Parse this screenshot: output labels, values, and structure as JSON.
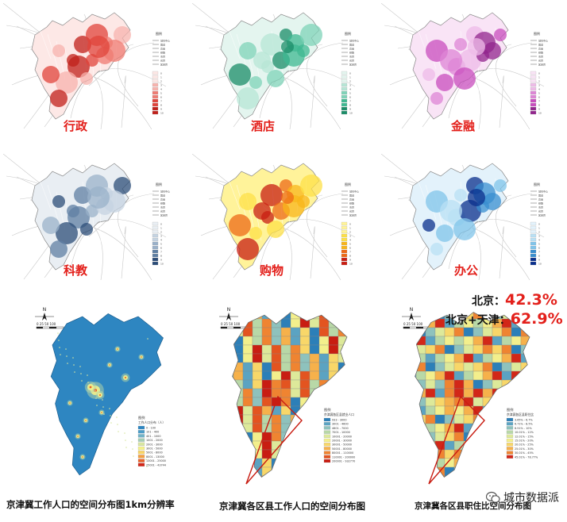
{
  "top_labels": [
    "行政",
    "酒店",
    "金融",
    "科教",
    "购物",
    "办公"
  ],
  "top_legend_title": "图例",
  "top_legend_items": [
    "城市中心",
    "国道",
    "高速",
    "铁路",
    "市界",
    "省界",
    "区县界"
  ],
  "top_legend_values": [
    "0",
    "1",
    "2",
    "3",
    "4",
    "5",
    "6",
    "7",
    "8",
    "9",
    "10"
  ],
  "palettes": {
    "red": [
      "#fde8e6",
      "#f7b3ad",
      "#ef7b72",
      "#e0443b",
      "#c0201a"
    ],
    "green": [
      "#e4f5ef",
      "#b7e6d6",
      "#7fd3b8",
      "#3fb892",
      "#1b8c68"
    ],
    "magenta": [
      "#f9e4f6",
      "#eebbe8",
      "#de85d6",
      "#c84dbe",
      "#92258d"
    ],
    "slate": [
      "#e9eef3",
      "#c5d3e1",
      "#9ab1c9",
      "#5f7fa3",
      "#2c4d78"
    ],
    "yellow_red": [
      "#fff39a",
      "#fde047",
      "#f8b51b",
      "#ee6a16",
      "#c81d12"
    ],
    "blue": [
      "#e3f2fb",
      "#b9e0f4",
      "#80c4ea",
      "#3a8fd0",
      "#0a2f8c"
    ]
  },
  "bottom": {
    "scale_text": "0   25  50    100",
    "scale_unit": "千米",
    "north": "N",
    "map1": {
      "title": "京津冀工作人口的空间分布图1km分辨率",
      "legend_title": "图例",
      "legend_subtitle": "工作人口分布（人）",
      "legend_items": [
        "0 - 100",
        "101 - 400",
        "401 - 1000",
        "1001 - 2000",
        "2001 - 3000",
        "3001 - 5000",
        "5001 - 8000",
        "8001 - 13000",
        "13001 - 25000",
        "25001 - 43744"
      ],
      "legend_colors": [
        "#2e86c1",
        "#4a9cc8",
        "#71b3c8",
        "#a3cdb5",
        "#d8e6a0",
        "#f4f18a",
        "#f9d466",
        "#f4a041",
        "#e9622a",
        "#d22718"
      ]
    },
    "map2": {
      "title": "京津冀各区县工作人口的空间分布图",
      "legend_title": "图例",
      "legend_subtitle": "京津冀各区县就业人口",
      "legend_items": [
        "933 - 3000",
        "3001 - 4600",
        "4601 - 7000",
        "7001 - 10000",
        "10001 - 20000",
        "20001 - 30000",
        "30001 - 50000",
        "50001 - 80000",
        "80001 - 110000",
        "110001 - 200000",
        "200001 - 932770"
      ],
      "legend_colors": [
        "#2c7fb8",
        "#5ba3c2",
        "#8ec2bd",
        "#b8d8a7",
        "#dde99a",
        "#f3ef8c",
        "#f8d769",
        "#f6b14b",
        "#ef8431",
        "#e35420",
        "#c81d12"
      ]
    },
    "map3": {
      "title": "京津冀各区县职住比空间分布图",
      "legend_title": "图例",
      "legend_subtitle": "京津冀各区县职住比",
      "legend_items": [
        "3.65% - 6.7%",
        "6.71% - 8.5%",
        "8.51% - 10%",
        "10.01% - 12%",
        "12.01% - 15%",
        "15.01% - 20%",
        "20.01% - 25%",
        "25.01% - 30%",
        "30.01% - 45%",
        "45.01% - 78.77%"
      ],
      "legend_colors": [
        "#2c7fb8",
        "#5ba3c2",
        "#8ec2bd",
        "#b8d8a7",
        "#dde99a",
        "#f3ef8c",
        "#f8d769",
        "#f6b14b",
        "#ef8431",
        "#d22718"
      ],
      "stats": [
        {
          "label": "北京：",
          "value": "42.3%"
        },
        {
          "label": "北京+天津：",
          "value": "62.9%"
        }
      ]
    }
  },
  "watermark": "城市数据派"
}
